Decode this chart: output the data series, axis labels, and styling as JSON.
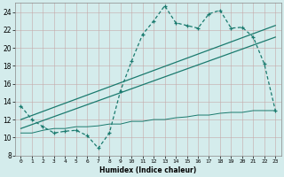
{
  "xlabel": "Humidex (Indice chaleur)",
  "xlim": [
    -0.5,
    23.5
  ],
  "ylim": [
    8,
    25
  ],
  "yticks": [
    8,
    10,
    12,
    14,
    16,
    18,
    20,
    22,
    24
  ],
  "xticks": [
    0,
    1,
    2,
    3,
    4,
    5,
    6,
    7,
    8,
    9,
    10,
    11,
    12,
    13,
    14,
    15,
    16,
    17,
    18,
    19,
    20,
    21,
    22,
    23
  ],
  "bg_color": "#d4ecec",
  "line_color": "#1a7a6e",
  "line1_x": [
    0,
    1,
    2,
    3,
    4,
    5,
    6,
    7,
    8,
    9,
    10,
    11,
    12,
    13,
    14,
    15,
    16,
    17,
    18,
    19,
    20,
    21,
    22,
    23
  ],
  "line1_y": [
    13.5,
    12.0,
    11.2,
    10.5,
    10.7,
    10.8,
    10.2,
    8.8,
    10.5,
    15.2,
    18.5,
    21.5,
    23.0,
    24.7,
    22.8,
    22.5,
    22.2,
    23.8,
    24.2,
    22.2,
    22.3,
    21.2,
    18.2,
    13.0
  ],
  "line2_x": [
    0,
    23
  ],
  "line2_y": [
    12.0,
    22.5
  ],
  "line3_x": [
    0,
    23
  ],
  "line3_y": [
    11.0,
    21.2
  ],
  "line4_x": [
    0,
    1,
    2,
    3,
    4,
    5,
    6,
    7,
    8,
    9,
    10,
    11,
    12,
    13,
    14,
    15,
    16,
    17,
    18,
    19,
    20,
    21,
    22,
    23
  ],
  "line4_y": [
    10.5,
    10.5,
    10.8,
    11.0,
    11.0,
    11.2,
    11.2,
    11.3,
    11.5,
    11.5,
    11.8,
    11.8,
    12.0,
    12.0,
    12.2,
    12.3,
    12.5,
    12.5,
    12.7,
    12.8,
    12.8,
    13.0,
    13.0,
    13.0
  ]
}
